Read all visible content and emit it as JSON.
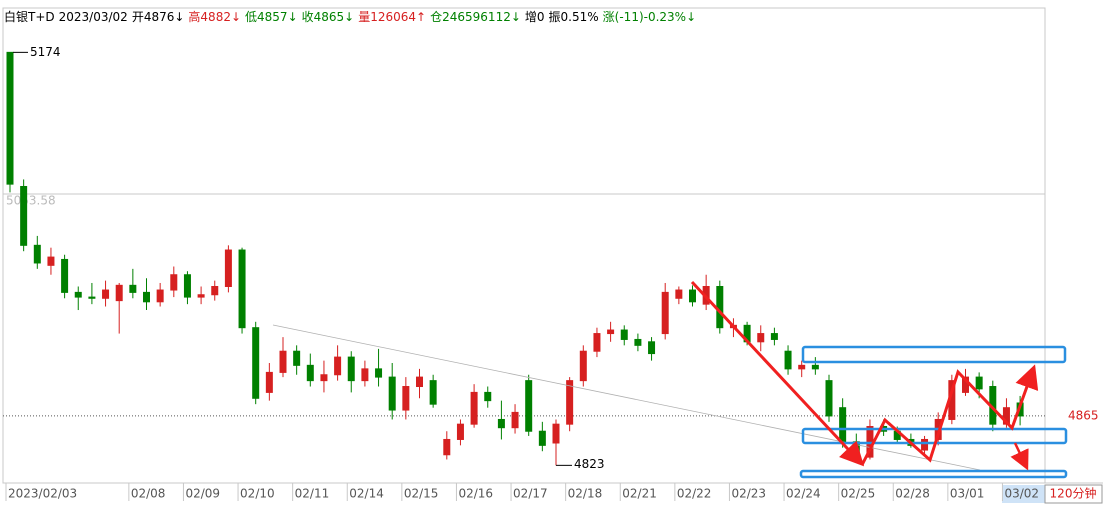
{
  "chart_data": {
    "type": "candlestick",
    "header": [
      {
        "text": "白银T+D",
        "color": "#000000"
      },
      {
        "text": "2023/03/02",
        "color": "#000000"
      },
      {
        "text": "开4876↓",
        "color": "#000000"
      },
      {
        "text": "高4882↓",
        "color": "#d62020"
      },
      {
        "text": "低4857↓",
        "color": "#008000"
      },
      {
        "text": "收4865↓",
        "color": "#008000"
      },
      {
        "text": "量126064↑",
        "color": "#d62020"
      },
      {
        "text": "仓246596112↓",
        "color": "#008000"
      },
      {
        "text": "增0",
        "color": "#000000"
      },
      {
        "text": "振0.51%",
        "color": "#000000"
      },
      {
        "text": "涨(-11)-0.23%↓",
        "color": "#008000"
      }
    ],
    "period": "120分钟",
    "categories": [
      "2023/02/03",
      null,
      null,
      null,
      null,
      null,
      null,
      null,
      null,
      "02/08",
      null,
      null,
      null,
      "02/09",
      null,
      null,
      null,
      "02/10",
      null,
      null,
      null,
      "02/11",
      null,
      null,
      null,
      "02/14",
      null,
      null,
      null,
      "02/15",
      null,
      null,
      null,
      "02/16",
      null,
      null,
      null,
      "02/17",
      null,
      null,
      null,
      "02/18",
      null,
      null,
      null,
      "02/21",
      null,
      null,
      null,
      "02/22",
      null,
      null,
      null,
      "02/23",
      null,
      null,
      null,
      "02/24",
      null,
      null,
      null,
      "02/25",
      null,
      null,
      null,
      "02/28",
      null,
      null,
      null,
      "03/01",
      null,
      null,
      null,
      "03/02",
      null
    ],
    "open": [
      5174,
      5060,
      5010,
      4993,
      4998,
      4970,
      4966,
      4965,
      4963,
      4976,
      4970,
      4962,
      4972,
      4985,
      4966,
      4968,
      4975,
      5006,
      4940,
      4885,
      4902,
      4920,
      4908,
      4895,
      4900,
      4915,
      4895,
      4905,
      4898,
      4870,
      4890,
      4895,
      4832,
      4845,
      4858,
      4885,
      4862,
      4855,
      4895,
      4852,
      4842,
      4858,
      4895,
      4920,
      4935,
      4938,
      4930,
      4928,
      4935,
      4965,
      4972,
      4960,
      4975,
      4940,
      4942,
      4928,
      4935,
      4920,
      4905,
      4908,
      4895,
      4872,
      4843,
      4830,
      4856,
      4852,
      4845,
      4836,
      4845,
      4862,
      4885,
      4898,
      4890,
      4858,
      4876
    ],
    "high": [
      5174,
      5066,
      5018,
      5008,
      5002,
      4975,
      4978,
      4980,
      4978,
      4990,
      4982,
      4978,
      4992,
      4988,
      4975,
      4980,
      5010,
      5008,
      4945,
      4910,
      4932,
      4925,
      4918,
      4912,
      4925,
      4920,
      4912,
      4922,
      4910,
      4898,
      4905,
      4900,
      4852,
      4862,
      4892,
      4890,
      4878,
      4875,
      4900,
      4860,
      4862,
      4898,
      4925,
      4940,
      4945,
      4942,
      4935,
      4932,
      4978,
      4975,
      4976,
      4985,
      4980,
      4948,
      4945,
      4942,
      4940,
      4925,
      4912,
      4915,
      4900,
      4880,
      4850,
      4862,
      4862,
      4856,
      4850,
      4848,
      4868,
      4900,
      4905,
      4902,
      4895,
      4880,
      4882
    ],
    "low": [
      5055,
      5005,
      4990,
      4985,
      4965,
      4955,
      4960,
      4958,
      4935,
      4965,
      4955,
      4958,
      4966,
      4960,
      4960,
      4963,
      4970,
      4935,
      4875,
      4878,
      4898,
      4900,
      4890,
      4885,
      4895,
      4885,
      4890,
      4890,
      4862,
      4862,
      4880,
      4872,
      4828,
      4840,
      4855,
      4872,
      4845,
      4850,
      4848,
      4835,
      4823,
      4852,
      4890,
      4915,
      4928,
      4925,
      4920,
      4912,
      4930,
      4960,
      4958,
      4955,
      4935,
      4932,
      4925,
      4920,
      4925,
      4900,
      4898,
      4900,
      4860,
      4838,
      4825,
      4828,
      4848,
      4842,
      4838,
      4832,
      4840,
      4858,
      4882,
      4880,
      4852,
      4855,
      4857
    ],
    "close": [
      5062,
      5010,
      4995,
      5000,
      4970,
      4966,
      4965,
      4972,
      4976,
      4970,
      4962,
      4972,
      4985,
      4966,
      4968,
      4975,
      5006,
      4940,
      4880,
      4902,
      4920,
      4908,
      4895,
      4900,
      4915,
      4895,
      4905,
      4898,
      4870,
      4890,
      4898,
      4875,
      4845,
      4858,
      4885,
      4878,
      4855,
      4868,
      4852,
      4840,
      4858,
      4895,
      4920,
      4935,
      4938,
      4930,
      4925,
      4918,
      4970,
      4972,
      4962,
      4975,
      4940,
      4942,
      4928,
      4935,
      4930,
      4905,
      4908,
      4905,
      4865,
      4843,
      4828,
      4856,
      4852,
      4845,
      4840,
      4845,
      4862,
      4895,
      4898,
      4888,
      4858,
      4872,
      4865
    ],
    "up_color": "#d62020",
    "down_color": "#008000",
    "ylim": [
      4808,
      5210
    ],
    "max_label": 5174,
    "min_label": 4823,
    "ref_line": 5053.58,
    "last_price": 4865
  }
}
